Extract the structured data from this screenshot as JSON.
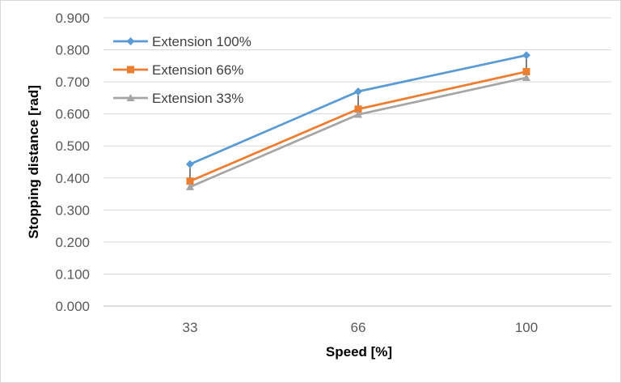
{
  "chart_data": {
    "type": "line",
    "xlabel": "Speed [%]",
    "ylabel": "Stopping distance [rad]",
    "categories": [
      "33",
      "66",
      "100"
    ],
    "ylim": [
      0,
      0.9
    ],
    "ytick_labels": [
      "0.000",
      "0.100",
      "0.200",
      "0.300",
      "0.400",
      "0.500",
      "0.600",
      "0.700",
      "0.800",
      "0.900"
    ],
    "grid": "horizontal",
    "legend_position": "top-left",
    "series": [
      {
        "name": "Extension 100%",
        "color": "#5b9bd5",
        "marker": "diamond",
        "values": [
          0.443,
          0.67,
          0.783
        ]
      },
      {
        "name": "Extension 66%",
        "color": "#ed7d31",
        "marker": "square",
        "values": [
          0.39,
          0.615,
          0.732
        ]
      },
      {
        "name": "Extension 33%",
        "color": "#a5a5a5",
        "marker": "triangle",
        "values": [
          0.372,
          0.598,
          0.713
        ]
      }
    ],
    "error_bars": [
      {
        "category": "33",
        "low": 0.372,
        "high": 0.443
      },
      {
        "category": "66",
        "low": 0.598,
        "high": 0.67
      },
      {
        "category": "100",
        "low": 0.713,
        "high": 0.783
      }
    ]
  }
}
